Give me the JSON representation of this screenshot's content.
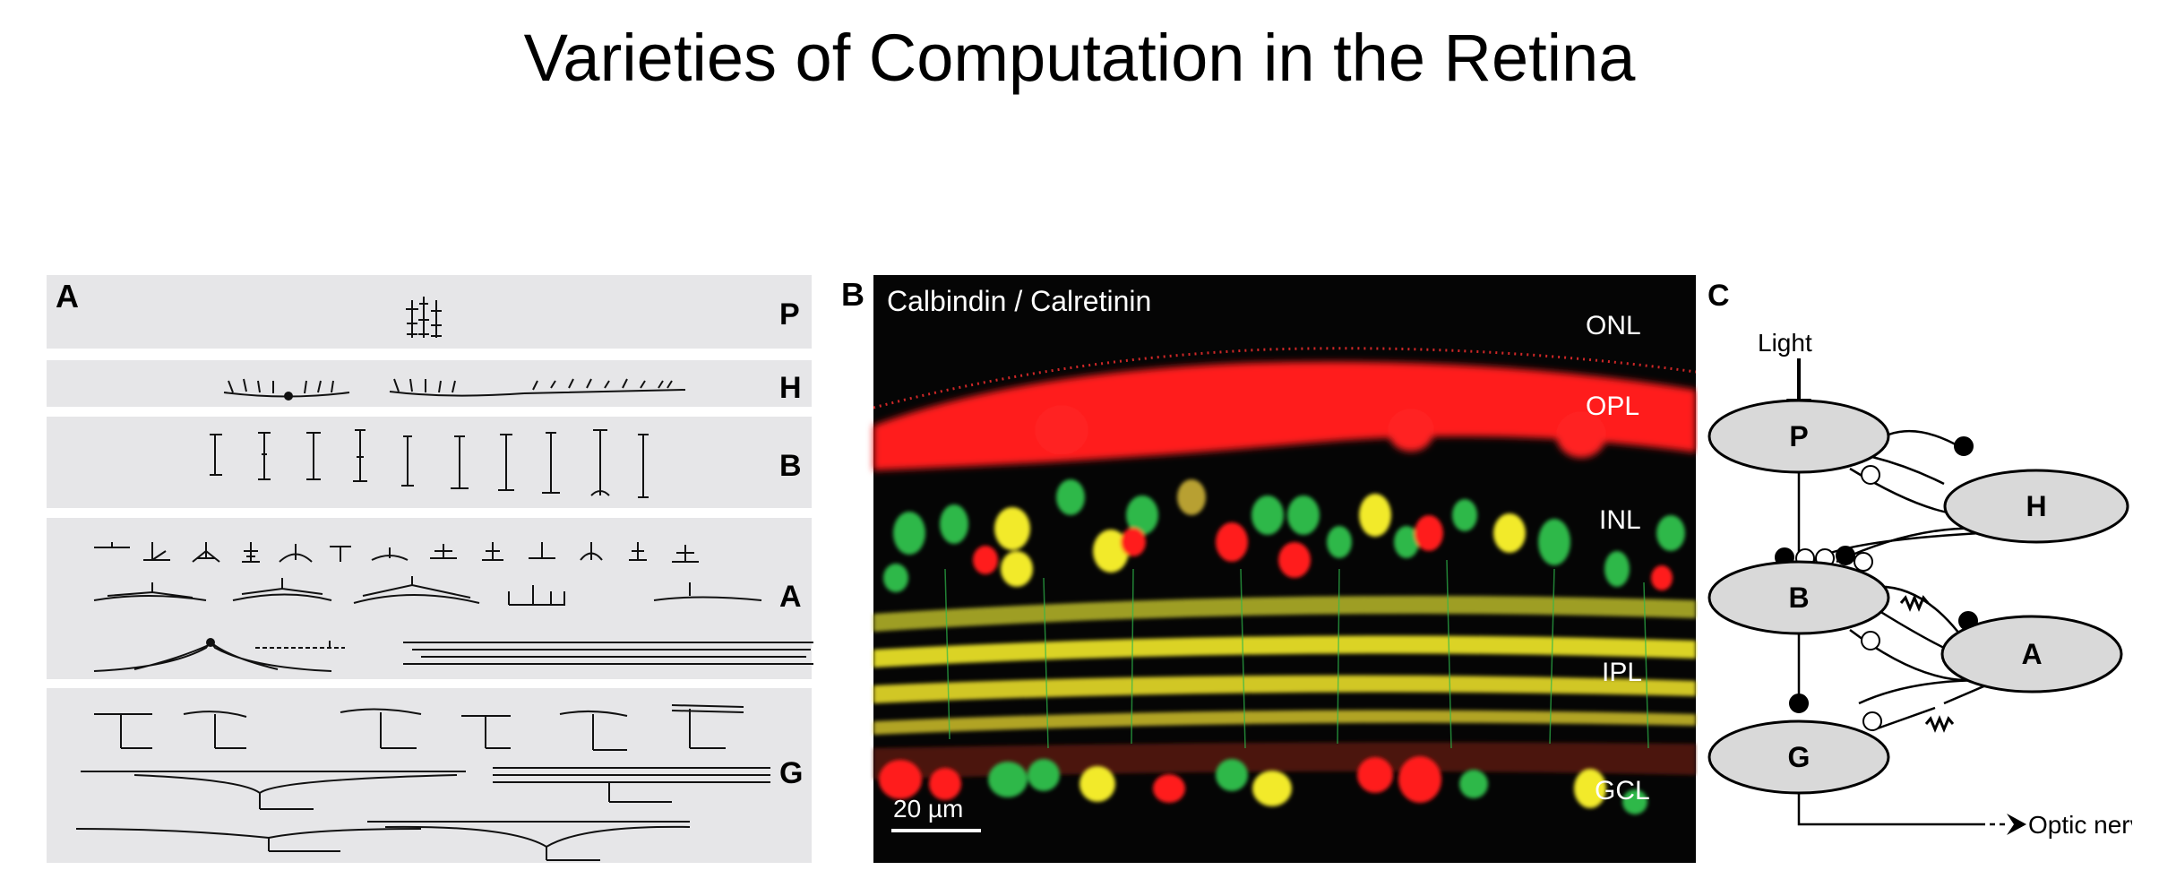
{
  "title": "Varieties of Computation in the Retina",
  "panel_a": {
    "label": "A",
    "rows": [
      {
        "label": "P"
      },
      {
        "label": "H"
      },
      {
        "label": "B"
      },
      {
        "label": "A"
      },
      {
        "label": "G"
      }
    ]
  },
  "panel_b": {
    "label": "B",
    "stain": "Calbindin / Calretinin",
    "layers": [
      "ONL",
      "OPL",
      "INL",
      "IPL",
      "GCL"
    ],
    "scale_bar": "20 µm"
  },
  "panel_c": {
    "label": "C",
    "light": "Light",
    "nodes": {
      "p": "P",
      "h": "H",
      "b": "B",
      "a": "A",
      "g": "G"
    },
    "output": "Optic nerve"
  },
  "colors": {
    "panel_bg": "#e6e6e8",
    "micrograph_bg": "#050505",
    "red_stain": "#ff1a1a",
    "green_stain": "#2db84a",
    "yellow_stain": "#f2ea2a",
    "node_fill": "#d9d9d9"
  }
}
